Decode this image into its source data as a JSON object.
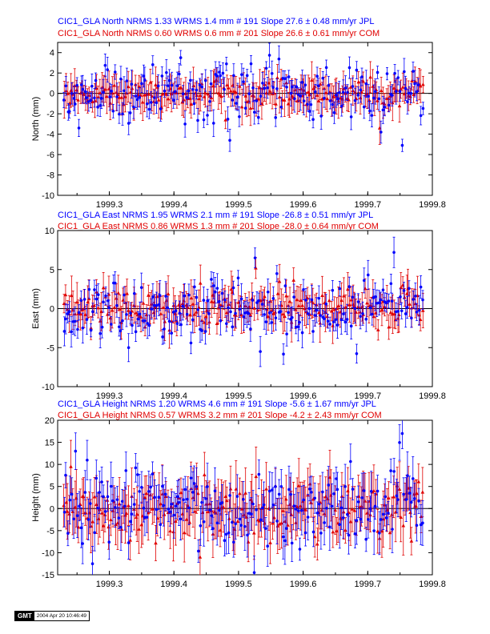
{
  "colors": {
    "jpl": "#0000ff",
    "com": "#e00000",
    "axis": "#000000"
  },
  "x_axis": {
    "range": [
      1999.22,
      1999.8
    ],
    "ticks": [
      "1999.3",
      "1999.4",
      "1999.5",
      "1999.6",
      "1999.7",
      "1999.8"
    ]
  },
  "panels": [
    {
      "id": "north",
      "ylabel": "North (mm)",
      "ylim": [
        -10,
        5
      ],
      "yticks": [
        "-10",
        "-8",
        "-6",
        "-4",
        "-2",
        "0",
        "2",
        "4"
      ],
      "header": [
        "CIC1_GLA North NRMS 1.33 WRMS  1.4 mm # 191 Slope   27.6 ±  0.48 mm/yr JPL",
        "CIC1_GLA North NRMS 0.60 WRMS  0.6 mm # 201 Slope   26.6 ±  0.61 mm/yr COM"
      ]
    },
    {
      "id": "east",
      "ylabel": "East (mm)",
      "ylim": [
        -10,
        10
      ],
      "yticks": [
        "-10",
        "-5",
        "0",
        "5",
        "10"
      ],
      "header": [
        "CIC1_GLA East NRMS 1.95 WRMS  2.1 mm # 191 Slope  -26.8 ±  0.51 mm/yr JPL",
        "CIC1_GLA East NRMS 0.86 WRMS  1.3 mm # 201 Slope  -28.0 ±  0.64 mm/yr COM"
      ]
    },
    {
      "id": "height",
      "ylabel": "Height (mm)",
      "ylim": [
        -15,
        20
      ],
      "yticks": [
        "-15",
        "-10",
        "-5",
        "0",
        "5",
        "10",
        "15",
        "20"
      ],
      "header": [
        "CIC1_GLA Height NRMS 1.20 WRMS  4.6 mm # 191 Slope   -5.6 ±  1.67 mm/yr JPL",
        "CIC1_GLA Height NRMS 0.57 WRMS  3.2 mm # 201 Slope   -4.2 ±  2.43 mm/yr COM"
      ]
    }
  ],
  "chart_data": [
    {
      "type": "scatter",
      "title": "CIC1_GLA North",
      "ylabel": "North (mm)",
      "xlim": [
        1999.22,
        1999.8
      ],
      "ylim": [
        -10,
        5
      ],
      "series": [
        {
          "name": "JPL",
          "count": 191,
          "x_range": [
            1999.23,
            1999.785
          ],
          "y_scatter_mm": 1.4,
          "error_bar_mm": 1.0,
          "notable_points": [
            {
              "x": 1999.41,
              "y": 3.5
            },
            {
              "x": 1999.485,
              "y": -4.6
            },
            {
              "x": 1999.752,
              "y": -5.1
            },
            {
              "x": 1999.72,
              "y": -3.8
            }
          ]
        },
        {
          "name": "COM",
          "count": 201,
          "x_range": [
            1999.23,
            1999.785
          ],
          "y_scatter_mm": 0.6,
          "error_bar_mm": 1.3,
          "notable_points": [
            {
              "x": 1999.48,
              "y": -2.6
            },
            {
              "x": 1999.718,
              "y": -3.4
            }
          ]
        }
      ]
    },
    {
      "type": "scatter",
      "title": "CIC1_GLA East",
      "ylabel": "East (mm)",
      "xlim": [
        1999.22,
        1999.8
      ],
      "ylim": [
        -10,
        10
      ],
      "series": [
        {
          "name": "JPL",
          "count": 191,
          "x_range": [
            1999.23,
            1999.785
          ],
          "y_scatter_mm": 2.1,
          "error_bar_mm": 1.4,
          "notable_points": [
            {
              "x": 1999.527,
              "y": 6.5
            },
            {
              "x": 1999.74,
              "y": 7.2
            },
            {
              "x": 1999.535,
              "y": -5.5
            },
            {
              "x": 1999.33,
              "y": -5.0
            }
          ]
        },
        {
          "name": "COM",
          "count": 201,
          "x_range": [
            1999.23,
            1999.785
          ],
          "y_scatter_mm": 1.3,
          "error_bar_mm": 1.8,
          "notable_points": [
            {
              "x": 1999.528,
              "y": 5.2
            },
            {
              "x": 1999.755,
              "y": 3.0
            }
          ]
        }
      ]
    },
    {
      "type": "scatter",
      "title": "CIC1_GLA Height",
      "ylabel": "Height (mm)",
      "xlim": [
        1999.22,
        1999.8
      ],
      "ylim": [
        -15,
        20
      ],
      "series": [
        {
          "name": "JPL",
          "count": 191,
          "x_range": [
            1999.23,
            1999.785
          ],
          "y_scatter_mm": 4.6,
          "error_bar_mm": 4.0,
          "notable_points": [
            {
              "x": 1999.752,
              "y": 17.0
            },
            {
              "x": 1999.248,
              "y": 13.0
            },
            {
              "x": 1999.275,
              "y": -12.5
            }
          ]
        },
        {
          "name": "COM",
          "count": 201,
          "x_range": [
            1999.23,
            1999.785
          ],
          "y_scatter_mm": 3.2,
          "error_bar_mm": 4.8,
          "notable_points": [
            {
              "x": 1999.24,
              "y": 9.5
            },
            {
              "x": 1999.44,
              "y": -11.0
            }
          ]
        }
      ]
    }
  ],
  "footer": {
    "logo": "GMT",
    "timestamp": "2004 Apr 20 10:46:49"
  }
}
